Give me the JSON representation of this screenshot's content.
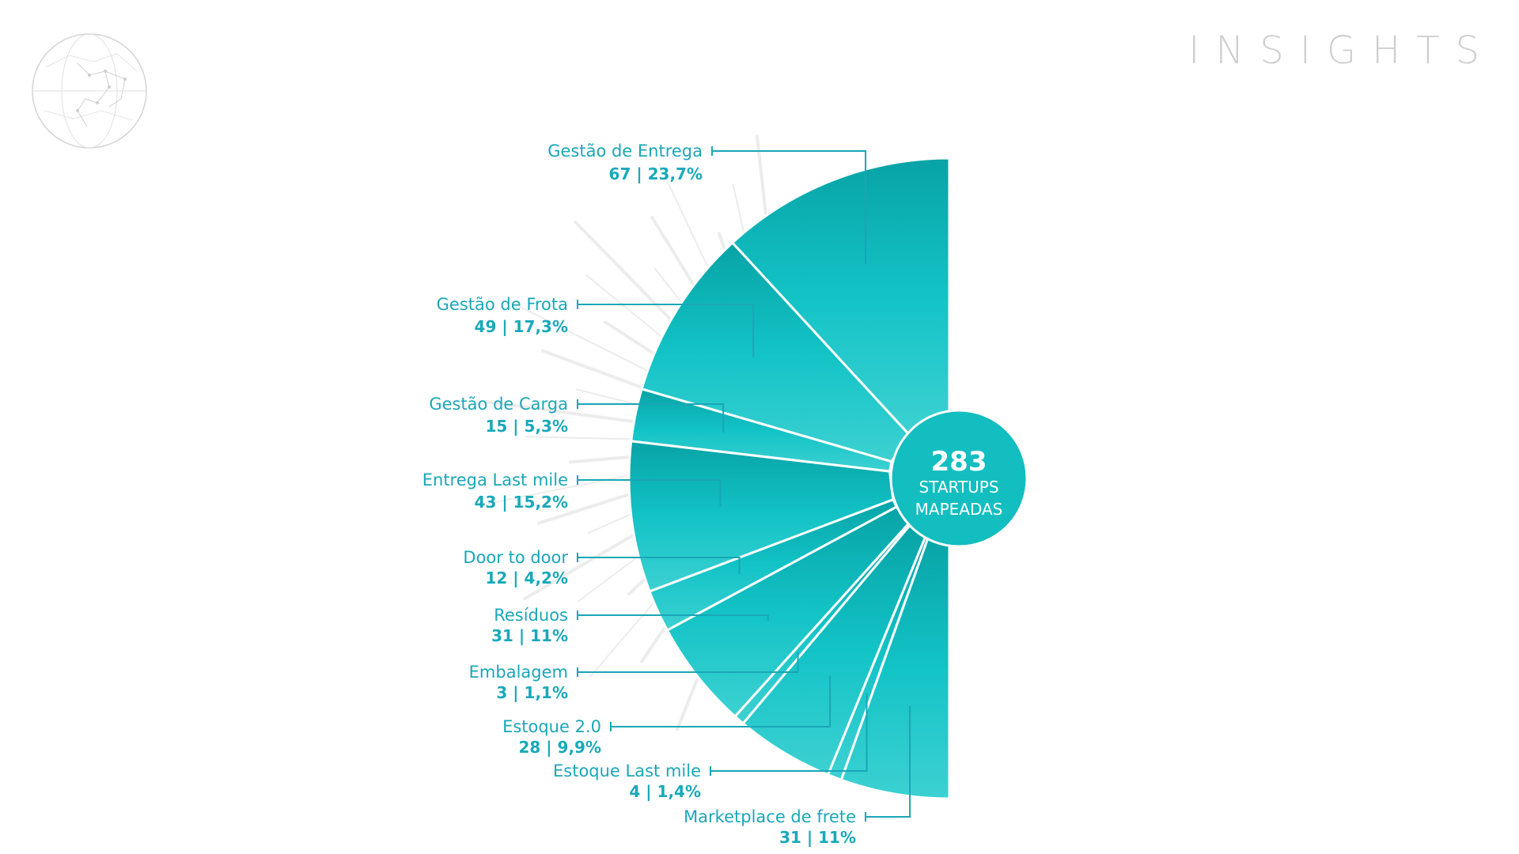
{
  "header": {
    "title": "INSIGHTS"
  },
  "colors": {
    "slice_dark": "#0aa4a8",
    "slice_light": "#2fcdcf",
    "label": "#1aa7b8",
    "center": "#13bec0",
    "title": "#cfcfcf"
  },
  "chart_data": {
    "type": "pie",
    "title": "",
    "center": {
      "value": "283",
      "line1": "STARTUPS",
      "line2": "MAPEADAS"
    },
    "total": 283,
    "slices": [
      {
        "label": "Gestão de Entrega",
        "value": 67,
        "percent": 23.7,
        "display": "67 | 23,7%"
      },
      {
        "label": "Gestão de Frota",
        "value": 49,
        "percent": 17.3,
        "display": "49 | 17,3%"
      },
      {
        "label": "Gestão de Carga",
        "value": 15,
        "percent": 5.3,
        "display": "15 | 5,3%"
      },
      {
        "label": "Entrega Last mile",
        "value": 43,
        "percent": 15.2,
        "display": "43 | 15,2%"
      },
      {
        "label": "Door to door",
        "value": 12,
        "percent": 4.2,
        "display": "12 | 4,2%"
      },
      {
        "label": "Resíduos",
        "value": 31,
        "percent": 11,
        "display": "31 | 11%"
      },
      {
        "label": "Embalagem",
        "value": 3,
        "percent": 1.1,
        "display": "3 | 1,1%"
      },
      {
        "label": "Estoque 2.0",
        "value": 28,
        "percent": 9.9,
        "display": "28 | 9,9%"
      },
      {
        "label": "Estoque Last mile",
        "value": 4,
        "percent": 1.4,
        "display": "4 | 1,4%"
      },
      {
        "label": "Marketplace de frete",
        "value": 31,
        "percent": 11,
        "display": "31 | 11%"
      }
    ]
  }
}
